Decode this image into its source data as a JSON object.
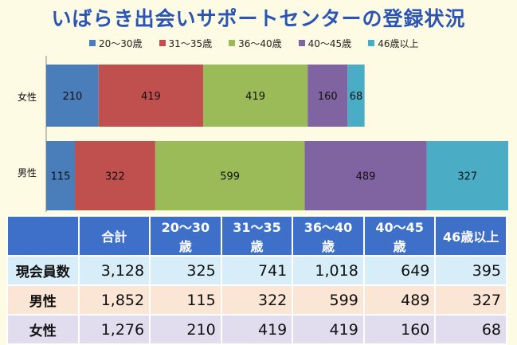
{
  "title": "いばらき出会いサポートセンターの登録状況",
  "chart_data": {
    "type": "bar",
    "orientation": "horizontal",
    "stacked": true,
    "categories": [
      "女性",
      "男性"
    ],
    "series": [
      {
        "name": "20～30歳",
        "color": "#4a7ebb",
        "values": [
          210,
          115
        ]
      },
      {
        "name": "31～35歳",
        "color": "#c0504d",
        "values": [
          419,
          322
        ]
      },
      {
        "name": "36～40歳",
        "color": "#9bbb59",
        "values": [
          419,
          599
        ]
      },
      {
        "name": "40～45歳",
        "color": "#8064a2",
        "values": [
          160,
          489
        ]
      },
      {
        "name": "46歳以上",
        "color": "#4bacc6",
        "values": [
          68,
          327
        ]
      }
    ],
    "legend_position": "top",
    "grid": false
  },
  "table": {
    "header": [
      "",
      "合計",
      "20～30歳",
      "31～35歳",
      "36～40歳",
      "40～45歳",
      "46歳以上"
    ],
    "rows": [
      [
        "現会員数",
        "3,128",
        "325",
        "741",
        "1,018",
        "649",
        "395"
      ],
      [
        "男性",
        "1,852",
        "115",
        "322",
        "599",
        "489",
        "327"
      ],
      [
        "女性",
        "1,276",
        "210",
        "419",
        "419",
        "160",
        "68"
      ]
    ]
  }
}
